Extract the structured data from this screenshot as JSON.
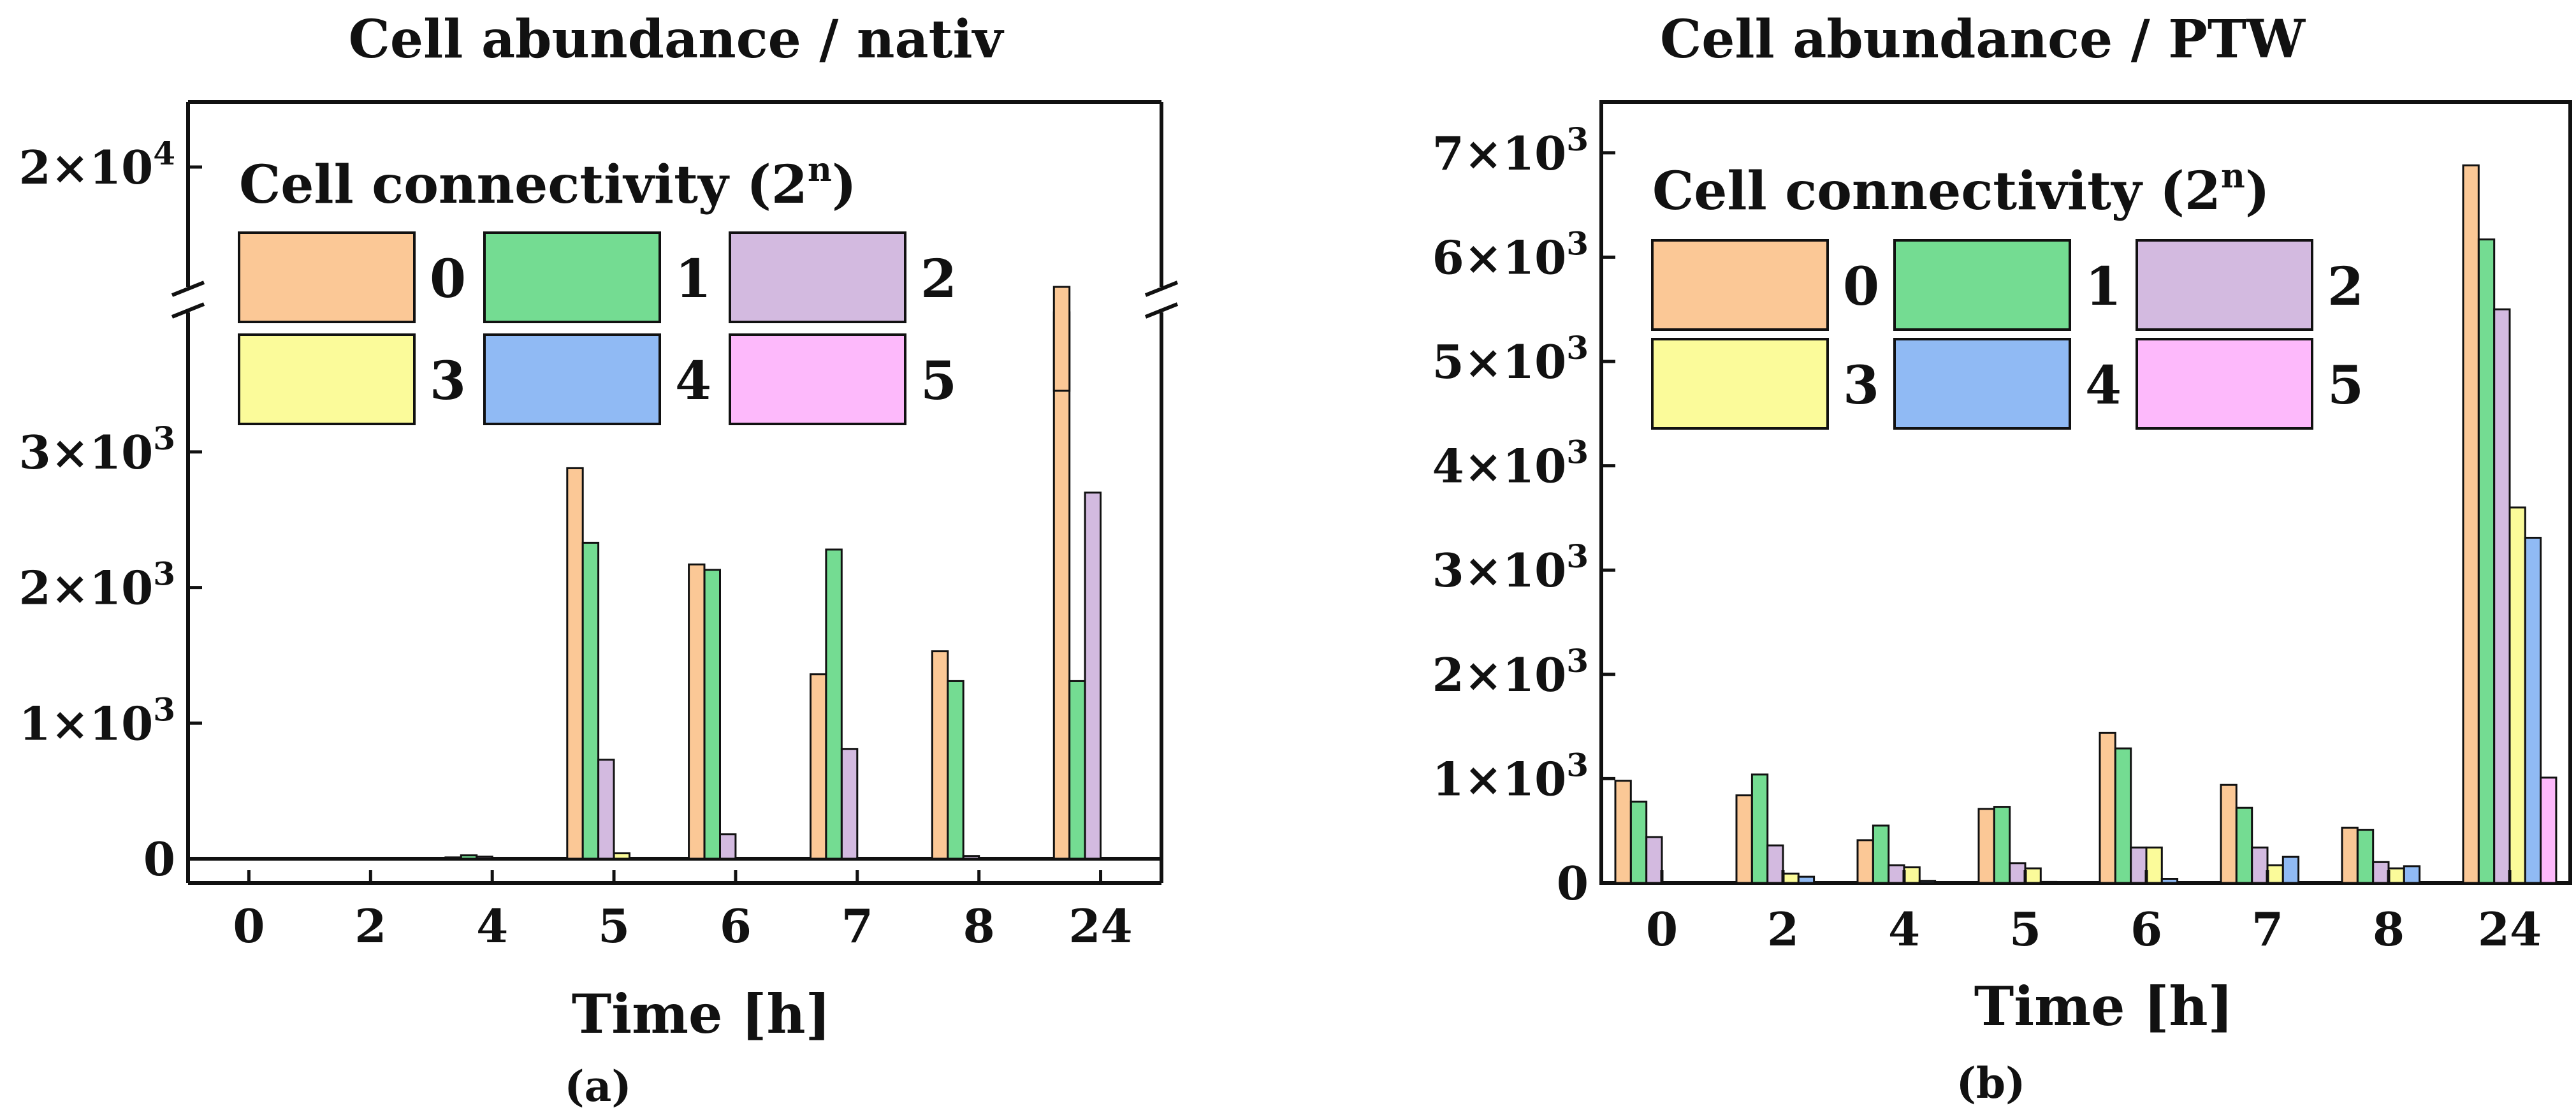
{
  "panels": [
    {
      "id": "a",
      "title": "Cell abundance / nativ",
      "xlabel": "Time [h]",
      "panel_label": "(a)",
      "legend_title": "Cell connectivity (2",
      "legend_title_sup": "n",
      "legend_title_end": ")",
      "yticks": [
        "0",
        "1×10",
        "2×10",
        "3×10",
        "2×10"
      ],
      "ytick_exp": [
        "",
        "3",
        "3",
        "3",
        "4"
      ]
    },
    {
      "id": "b",
      "title": "Cell abundance / PTW",
      "xlabel": "Time [h]",
      "panel_label": "(b)",
      "legend_title": "Cell connectivity (2",
      "legend_title_sup": "n",
      "legend_title_end": ")",
      "yticks": [
        "0",
        "1×10",
        "2×10",
        "3×10",
        "4×10",
        "5×10",
        "6×10",
        "7×10"
      ],
      "ytick_exp": [
        "",
        "3",
        "3",
        "3",
        "3",
        "3",
        "3",
        "3"
      ]
    }
  ],
  "chart_data": [
    {
      "type": "bar",
      "title": "Cell abundance / nativ",
      "xlabel": "Time [h]",
      "ylabel": "",
      "categories": [
        "0",
        "2",
        "4",
        "5",
        "6",
        "7",
        "8",
        "24"
      ],
      "y_axis_break": true,
      "ylim": [
        0,
        20000
      ],
      "series": [
        {
          "name": "0",
          "color": "#fbc896",
          "values": [
            0,
            0,
            10,
            2880,
            2170,
            1360,
            1530,
            14000
          ]
        },
        {
          "name": "1",
          "color": "#74dc92",
          "values": [
            0,
            0,
            25,
            2330,
            2130,
            2280,
            1310,
            1310
          ]
        },
        {
          "name": "2",
          "color": "#d3bae0",
          "values": [
            0,
            0,
            15,
            730,
            180,
            810,
            20,
            2700
          ]
        },
        {
          "name": "3",
          "color": "#fbfb9a",
          "values": [
            0,
            0,
            5,
            40,
            5,
            5,
            5,
            0
          ]
        },
        {
          "name": "4",
          "color": "#90baf4",
          "values": [
            0,
            0,
            0,
            0,
            0,
            0,
            0,
            0
          ]
        },
        {
          "name": "5",
          "color": "#fdb9fb",
          "values": [
            0,
            0,
            0,
            0,
            0,
            0,
            0,
            0
          ]
        }
      ]
    },
    {
      "type": "bar",
      "title": "Cell abundance / PTW",
      "xlabel": "Time [h]",
      "ylabel": "",
      "categories": [
        "0",
        "2",
        "4",
        "5",
        "6",
        "7",
        "8",
        "24"
      ],
      "ylim": [
        0,
        7500
      ],
      "series": [
        {
          "name": "0",
          "color": "#fbc896",
          "values": [
            980,
            840,
            410,
            710,
            1440,
            940,
            530,
            6880
          ]
        },
        {
          "name": "1",
          "color": "#74dc92",
          "values": [
            780,
            1040,
            550,
            730,
            1290,
            720,
            510,
            6170
          ]
        },
        {
          "name": "2",
          "color": "#d3bae0",
          "values": [
            440,
            360,
            170,
            190,
            340,
            340,
            200,
            5500
          ]
        },
        {
          "name": "3",
          "color": "#fbfb9a",
          "values": [
            0,
            90,
            150,
            140,
            340,
            170,
            140,
            3600
          ]
        },
        {
          "name": "4",
          "color": "#90baf4",
          "values": [
            0,
            60,
            20,
            10,
            40,
            250,
            160,
            3310
          ]
        },
        {
          "name": "5",
          "color": "#fdb9fb",
          "values": [
            0,
            0,
            0,
            0,
            0,
            0,
            0,
            1010
          ]
        }
      ]
    }
  ]
}
